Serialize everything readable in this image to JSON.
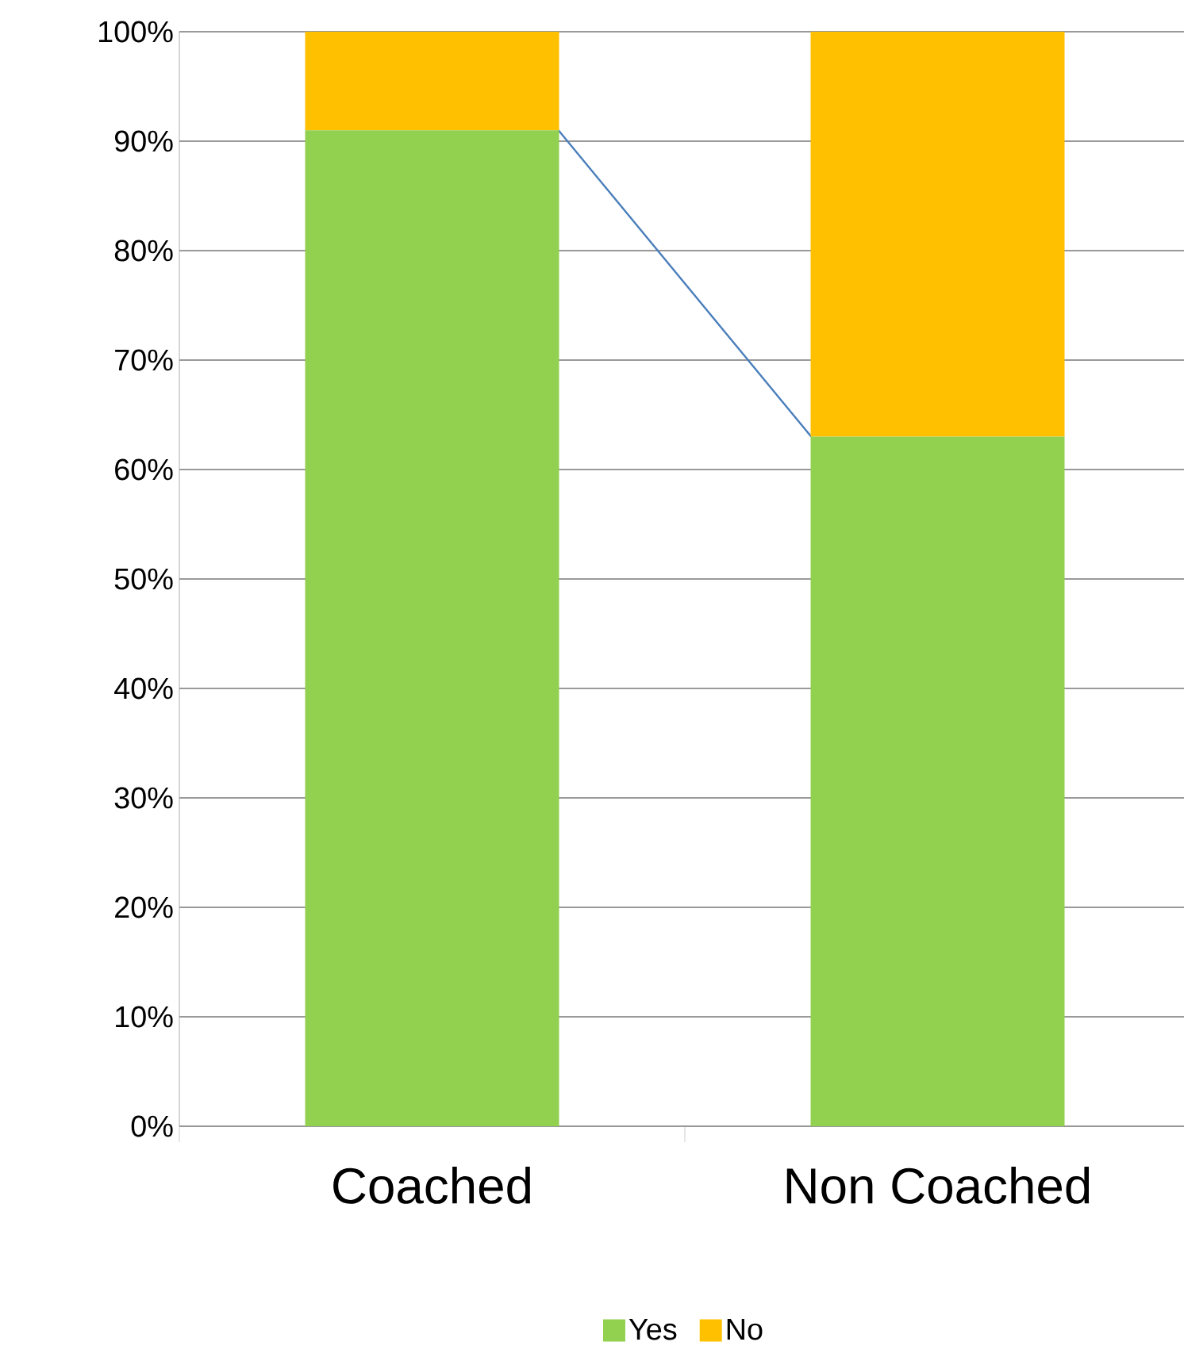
{
  "chart_data": {
    "type": "bar",
    "stacked": true,
    "categories": [
      "Coached",
      "Non Coached"
    ],
    "series": [
      {
        "name": "Yes",
        "color": "#92d050",
        "values": [
          91,
          63
        ]
      },
      {
        "name": "No",
        "color": "#ffc000",
        "values": [
          9,
          37
        ]
      }
    ],
    "ylim": [
      0,
      100
    ],
    "yticks": [
      {
        "value": 0,
        "label": "0%"
      },
      {
        "value": 10,
        "label": "10%"
      },
      {
        "value": 20,
        "label": "20%"
      },
      {
        "value": 30,
        "label": "30%"
      },
      {
        "value": 40,
        "label": "40%"
      },
      {
        "value": 50,
        "label": "50%"
      },
      {
        "value": 60,
        "label": "60%"
      },
      {
        "value": 70,
        "label": "70%"
      },
      {
        "value": 80,
        "label": "80%"
      },
      {
        "value": 90,
        "label": "90%"
      },
      {
        "value": 100,
        "label": "100%"
      }
    ],
    "grid": "y",
    "legend": "bottom"
  }
}
